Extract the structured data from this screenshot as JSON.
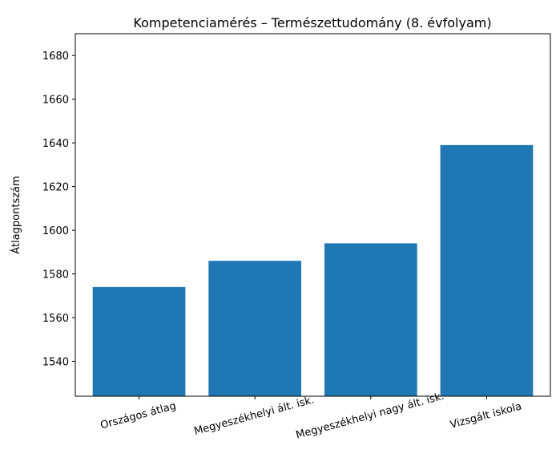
{
  "chart_data": {
    "type": "bar",
    "title": "Kompetenciamérés – Természettudomány (8. évfolyam)",
    "y_label": "Átlagpontszám",
    "categories": [
      "Országos átlag",
      "Megyeszékhelyi ált. isk.",
      "Megyeszékhelyi nagy ált. isk.",
      "Vizsgált iskola"
    ],
    "values": [
      1574,
      1586,
      1594,
      1639
    ],
    "color": "#1f77b4",
    "ylim": [
      1524,
      1690
    ],
    "yticks": [
      1540,
      1560,
      1580,
      1600,
      1620,
      1640,
      1660,
      1680
    ],
    "grid": false
  }
}
